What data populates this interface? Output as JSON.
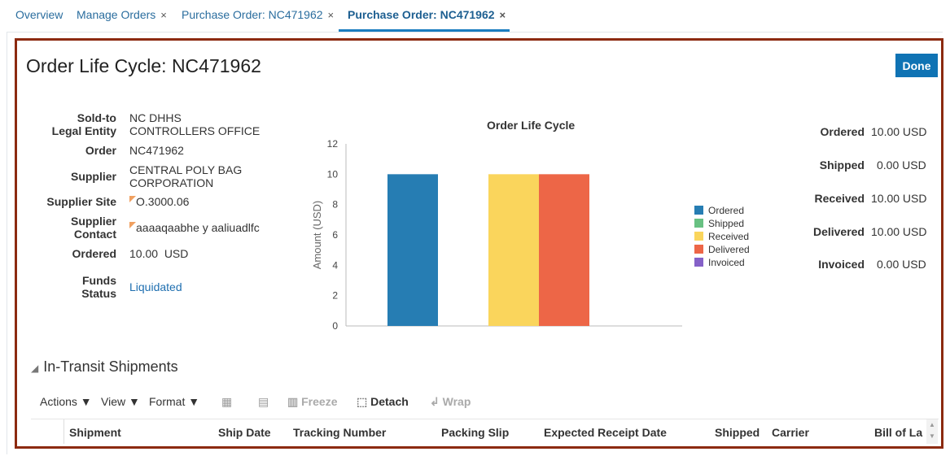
{
  "tabs": [
    {
      "label": "Overview"
    },
    {
      "label": "Manage Orders",
      "close": "×"
    },
    {
      "label": "Purchase Order: NC471962",
      "close": "×"
    },
    {
      "label": "Purchase Order: NC471962",
      "close": "×",
      "active": true
    }
  ],
  "page_title": "Order Life Cycle: NC471962",
  "done_label": "Done",
  "details": {
    "sold_to_label1": "Sold-to",
    "sold_to_label2": "Legal Entity",
    "sold_to_value1": "NC DHHS",
    "sold_to_value2": "CONTROLLERS OFFICE",
    "order_label": "Order",
    "order_value": "NC471962",
    "supplier_label": "Supplier",
    "supplier_value1": "CENTRAL POLY BAG",
    "supplier_value2": "CORPORATION",
    "site_label": "Supplier Site",
    "site_value": "O.3000.06",
    "contact_label1": "Supplier",
    "contact_label2": "Contact",
    "contact_value": "aaaaqaabhe y aaliuadlfc",
    "ordered_label": "Ordered",
    "ordered_value": "10.00  USD",
    "funds_label1": "Funds",
    "funds_label2": "Status",
    "funds_value": "Liquidated"
  },
  "summary": [
    {
      "label": "Ordered",
      "value": "10.00 USD"
    },
    {
      "label": "Shipped",
      "value": "0.00 USD"
    },
    {
      "label": "Received",
      "value": "10.00 USD"
    },
    {
      "label": "Delivered",
      "value": "10.00 USD"
    },
    {
      "label": "Invoiced",
      "value": "0.00 USD"
    }
  ],
  "chart_data": {
    "type": "bar",
    "title": "Order Life Cycle",
    "ylabel": "Amount (USD)",
    "xlabel": "",
    "categories": [
      "Ordered",
      "Shipped",
      "Received",
      "Delivered",
      "Invoiced"
    ],
    "values": [
      10,
      0,
      10,
      10,
      0
    ],
    "colors": [
      "#267db3",
      "#68c182",
      "#fad55c",
      "#ed6647",
      "#8561c8"
    ],
    "ylim": [
      0,
      12
    ],
    "yticks": [
      "0",
      "2",
      "4",
      "6",
      "8",
      "10",
      "12"
    ],
    "legend": "right"
  },
  "section": {
    "title": "In-Transit Shipments",
    "toolbar": {
      "actions": "Actions",
      "view": "View",
      "format": "Format",
      "freeze": "Freeze",
      "detach": "Detach",
      "wrap": "Wrap"
    },
    "columns": [
      "Shipment",
      "Ship Date",
      "Tracking Number",
      "Packing Slip",
      "Expected Receipt Date",
      "Shipped",
      "Carrier",
      "Bill of La"
    ]
  }
}
